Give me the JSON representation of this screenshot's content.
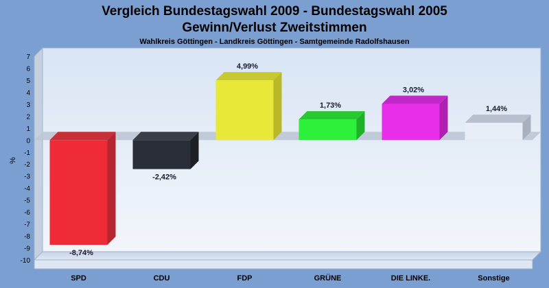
{
  "chart_data": {
    "type": "bar",
    "title_line1": "Vergleich Bundestagswahl 2009 - Bundestagswahl 2005",
    "title_line2": "Gewinn/Verlust Zweitstimmen",
    "subtitle": "Wahlkreis Göttingen - Landkreis Göttingen - Samtgemeinde Radolfshausen",
    "ylabel": "%",
    "xlabel": "",
    "ylim": [
      -10,
      7
    ],
    "yticks": [
      7,
      6,
      5,
      4,
      3,
      2,
      1,
      0,
      -1,
      -2,
      -3,
      -4,
      -5,
      -6,
      -7,
      -8,
      -9,
      -10
    ],
    "grid": false,
    "categories": [
      "SPD",
      "CDU",
      "FDP",
      "GRÜNE",
      "DIE LINKE.",
      "Sonstige"
    ],
    "values": [
      -8.74,
      -2.42,
      4.99,
      1.73,
      3.02,
      1.44
    ],
    "value_labels": [
      "-8,74%",
      "-2,42%",
      "4,99%",
      "1,73%",
      "3,02%",
      "1,44%"
    ],
    "colors": [
      "#ee2b36",
      "#2a2e38",
      "#e8e838",
      "#2cf03a",
      "#e82ee8",
      "#e8eef8"
    ],
    "side_colors": [
      "#b52630",
      "#1c1f26",
      "#b8b828",
      "#20b02a",
      "#b020b0",
      "#a8b0c0"
    ],
    "top_colors": [
      "#c83038",
      "#3a3e48",
      "#c8c830",
      "#28c830",
      "#c028c8",
      "#b8c0d0"
    ]
  }
}
